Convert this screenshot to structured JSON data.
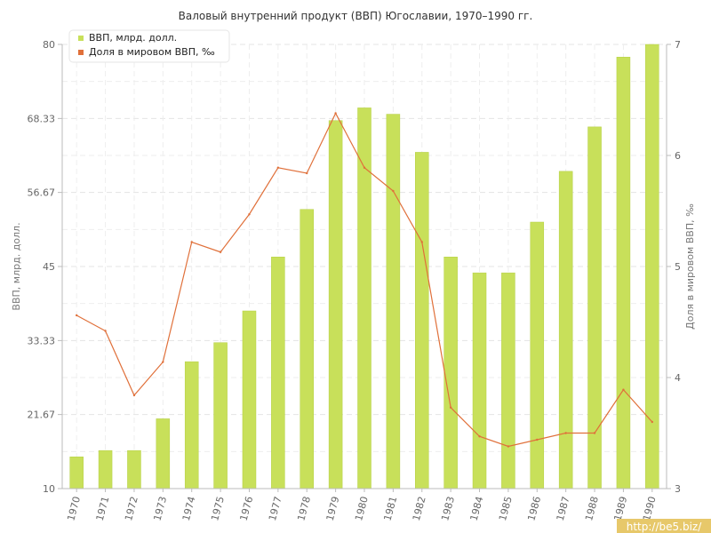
{
  "chart_data": {
    "type": "bar",
    "title": "Валовый внутренний продукт (ВВП) Югославии, 1970–1990 гг.",
    "categories": [
      "1970",
      "1971",
      "1972",
      "1973",
      "1974",
      "1975",
      "1976",
      "1977",
      "1978",
      "1979",
      "1980",
      "1981",
      "1982",
      "1983",
      "1984",
      "1985",
      "1986",
      "1987",
      "1988",
      "1989",
      "1990"
    ],
    "series": [
      {
        "name": "ВВП, млрд. долл.",
        "type": "bar",
        "axis": "left",
        "color": "#c8e05a",
        "values": [
          15.0,
          16.0,
          16.0,
          21.0,
          30.0,
          33.0,
          38.0,
          46.5,
          54.0,
          68.0,
          70.0,
          69.0,
          63.0,
          46.5,
          44.0,
          44.0,
          52.0,
          60.0,
          67.0,
          78.0,
          80.0
        ]
      },
      {
        "name": "Доля в мировом ВВП, ‰",
        "type": "line",
        "axis": "right",
        "color": "#e0703a",
        "values": [
          4.56,
          4.42,
          3.84,
          4.14,
          5.22,
          5.13,
          5.47,
          5.89,
          5.84,
          6.38,
          5.89,
          5.68,
          5.22,
          3.73,
          3.47,
          3.38,
          3.44,
          3.5,
          3.5,
          3.89,
          3.6
        ]
      }
    ],
    "ylabel": "ВВП, млрд. долл.",
    "y2label": "Доля в мировом ВВП, ‰",
    "ylim": [
      10,
      80
    ],
    "y2lim": [
      3,
      7
    ],
    "yticks": [
      "10",
      "21.67",
      "33.33",
      "45",
      "56.67",
      "68.33",
      "80"
    ],
    "y2ticks": [
      "3",
      "4",
      "5",
      "6",
      "7"
    ],
    "grid": true,
    "legend": "top-left"
  },
  "watermark": "http://be5.biz/"
}
